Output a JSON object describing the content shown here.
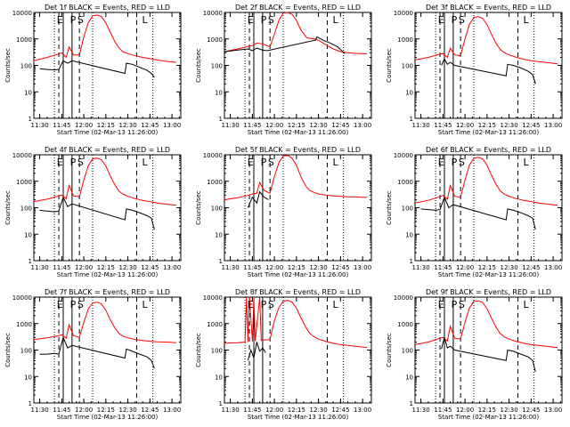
{
  "figure": {
    "y_axis_label": "Counts/sec",
    "x_axis_label": "Start Time (02-Mar-13 11:26:00)",
    "x_tick_labels": [
      "11:30",
      "11:45",
      "12:00",
      "12:15",
      "12:30",
      "12:45",
      "13:00"
    ],
    "y_tick_labels": [
      "1",
      "10",
      "100",
      "1000",
      "10000"
    ]
  },
  "colors": {
    "events": "#000000",
    "lld": "#ff0000",
    "axis": "#000000"
  },
  "chart_data": [
    {
      "type": "line",
      "title": "Det 1f BLACK = Events, RED = LLD",
      "xlabel": "Start Time (02-Mar-13 11:26:00)",
      "ylabel": "Counts/sec",
      "x_range": [
        "11:26",
        "13:06"
      ],
      "ylim": [
        1,
        10000
      ],
      "y_scale": "log",
      "region_markers": [
        "E",
        "P",
        "S",
        "L"
      ],
      "series": [
        {
          "color": "red",
          "x": [
            "11:26",
            "11:35",
            "11:42",
            "11:45",
            "11:48",
            "11:50",
            "11:53",
            "11:57",
            "12:00",
            "12:03",
            "12:06",
            "12:09",
            "12:12",
            "12:15",
            "12:18",
            "12:21",
            "12:24",
            "12:27",
            "12:30",
            "12:35",
            "12:40",
            "12:45",
            "12:50",
            "12:55",
            "13:00",
            "13:03"
          ],
          "values": [
            150,
            200,
            260,
            300,
            200,
            500,
            250,
            250,
            1200,
            4000,
            7500,
            8000,
            7000,
            4000,
            1800,
            800,
            450,
            320,
            280,
            230,
            200,
            180,
            160,
            145,
            135,
            130
          ]
        },
        {
          "color": "black",
          "x": [
            "11:30",
            "11:35",
            "11:40",
            "11:43",
            "11:46",
            "11:49",
            "11:52",
            "12:28",
            "12:29",
            "12:33",
            "12:38",
            "12:43",
            "12:46",
            "12:48"
          ],
          "values": [
            75,
            70,
            68,
            70,
            150,
            120,
            150,
            50,
            120,
            110,
            85,
            65,
            50,
            35
          ]
        }
      ]
    },
    {
      "type": "line",
      "title": "Det 2f BLACK = Events, RED = LLD",
      "xlabel": "Start Time (02-Mar-13 11:26:00)",
      "ylabel": "Counts/sec",
      "x_range": [
        "11:26",
        "13:06"
      ],
      "ylim": [
        1,
        10000
      ],
      "y_scale": "log",
      "region_markers": [
        "E",
        "P",
        "S",
        "L"
      ],
      "series": [
        {
          "color": "red",
          "x": [
            "11:26",
            "11:35",
            "11:42",
            "11:45",
            "11:48",
            "11:52",
            "11:57",
            "12:00",
            "12:03",
            "12:06",
            "12:09",
            "12:12",
            "12:15",
            "12:18",
            "12:22",
            "12:27",
            "12:30",
            "12:35",
            "12:40",
            "12:45",
            "12:50",
            "12:55",
            "13:00",
            "13:03"
          ],
          "values": [
            330,
            420,
            520,
            560,
            700,
            650,
            500,
            1500,
            5000,
            9500,
            10000,
            8500,
            5000,
            2200,
            1100,
            1000,
            900,
            600,
            420,
            330,
            300,
            285,
            280,
            275
          ]
        },
        {
          "color": "black",
          "x": [
            "11:26",
            "11:35",
            "11:42",
            "11:45",
            "11:48",
            "11:52",
            "11:55",
            "12:28",
            "12:29",
            "12:33",
            "12:38",
            "12:43",
            "12:46",
            "12:48"
          ],
          "values": [
            330,
            380,
            420,
            360,
            450,
            380,
            360,
            900,
            1200,
            900,
            700,
            500,
            350,
            280
          ]
        }
      ]
    },
    {
      "type": "line",
      "title": "Det 3f BLACK = Events, RED = LLD",
      "xlabel": "Start Time (02-Mar-13 11:26:00)",
      "ylabel": "Counts/sec",
      "x_range": [
        "11:26",
        "13:06"
      ],
      "ylim": [
        1,
        10000
      ],
      "y_scale": "log",
      "region_markers": [
        "E",
        "P",
        "S",
        "L"
      ],
      "series": [
        {
          "color": "red",
          "x": [
            "11:26",
            "11:35",
            "11:42",
            "11:45",
            "11:48",
            "11:50",
            "11:53",
            "11:57",
            "12:00",
            "12:03",
            "12:06",
            "12:09",
            "12:12",
            "12:15",
            "12:18",
            "12:21",
            "12:24",
            "12:27",
            "12:30",
            "12:35",
            "12:40",
            "12:45",
            "12:50",
            "12:55",
            "13:00",
            "13:03"
          ],
          "values": [
            160,
            200,
            260,
            280,
            200,
            450,
            250,
            230,
            1000,
            3500,
            6500,
            7000,
            6000,
            3500,
            1500,
            700,
            400,
            300,
            250,
            200,
            170,
            150,
            140,
            130,
            120,
            115
          ]
        },
        {
          "color": "black",
          "x": [
            "11:44",
            "11:46",
            "11:48",
            "11:50",
            "11:53",
            "12:28",
            "12:29",
            "12:33",
            "12:38",
            "12:43",
            "12:46",
            "12:48"
          ],
          "values": [
            100,
            180,
            110,
            130,
            100,
            40,
            110,
            100,
            80,
            60,
            45,
            20
          ]
        }
      ]
    },
    {
      "type": "line",
      "title": "Det 4f BLACK = Events, RED = LLD",
      "xlabel": "Start Time (02-Mar-13 11:26:00)",
      "ylabel": "Counts/sec",
      "x_range": [
        "11:26",
        "13:06"
      ],
      "ylim": [
        1,
        10000
      ],
      "y_scale": "log",
      "region_markers": [
        "E",
        "P",
        "S",
        "L"
      ],
      "series": [
        {
          "color": "red",
          "x": [
            "11:26",
            "11:35",
            "11:42",
            "11:45",
            "11:48",
            "11:50",
            "11:53",
            "11:57",
            "12:00",
            "12:03",
            "12:06",
            "12:09",
            "12:12",
            "12:15",
            "12:18",
            "12:21",
            "12:24",
            "12:27",
            "12:30",
            "12:35",
            "12:40",
            "12:45",
            "12:50",
            "12:55",
            "13:00",
            "13:03"
          ],
          "values": [
            170,
            210,
            270,
            300,
            220,
            700,
            280,
            260,
            1100,
            3800,
            7000,
            7500,
            6500,
            3800,
            1600,
            750,
            420,
            320,
            270,
            220,
            190,
            170,
            150,
            140,
            130,
            125
          ]
        },
        {
          "color": "black",
          "x": [
            "11:30",
            "11:35",
            "11:40",
            "11:43",
            "11:46",
            "11:49",
            "11:52",
            "12:28",
            "12:29",
            "12:33",
            "12:38",
            "12:43",
            "12:46",
            "12:48"
          ],
          "values": [
            80,
            75,
            70,
            75,
            250,
            110,
            140,
            35,
            90,
            80,
            65,
            50,
            40,
            15
          ]
        }
      ]
    },
    {
      "type": "line",
      "title": "Det 5f BLACK = Events, RED = LLD",
      "xlabel": "Start Time (02-Mar-13 11:26:00)",
      "ylabel": "Counts/sec",
      "x_range": [
        "11:26",
        "13:06"
      ],
      "ylim": [
        1,
        10000
      ],
      "y_scale": "log",
      "region_markers": [
        "E",
        "P",
        "S",
        "L"
      ],
      "series": [
        {
          "color": "red",
          "x": [
            "11:26",
            "11:35",
            "11:42",
            "11:45",
            "11:48",
            "11:50",
            "11:53",
            "11:57",
            "12:00",
            "12:03",
            "12:06",
            "12:09",
            "12:12",
            "12:15",
            "12:18",
            "12:21",
            "12:24",
            "12:27",
            "12:30",
            "12:35",
            "12:40",
            "12:45",
            "12:50",
            "12:55",
            "13:00",
            "13:03"
          ],
          "values": [
            200,
            240,
            290,
            330,
            350,
            900,
            450,
            350,
            1500,
            5000,
            9000,
            9500,
            7500,
            4000,
            1500,
            700,
            450,
            380,
            330,
            300,
            280,
            270,
            260,
            255,
            250,
            250
          ]
        },
        {
          "color": "black",
          "x": [
            "11:42",
            "11:45",
            "11:48",
            "11:50",
            "11:53",
            "11:56"
          ],
          "values": [
            100,
            250,
            150,
            400,
            250,
            200
          ]
        }
      ]
    },
    {
      "type": "line",
      "title": "Det 6f BLACK = Events, RED = LLD",
      "xlabel": "Start Time (02-Mar-13 11:26:00)",
      "ylabel": "Counts/sec",
      "x_range": [
        "11:26",
        "13:06"
      ],
      "ylim": [
        1,
        10000
      ],
      "y_scale": "log",
      "region_markers": [
        "E",
        "P",
        "S",
        "L"
      ],
      "series": [
        {
          "color": "red",
          "x": [
            "11:26",
            "11:35",
            "11:42",
            "11:45",
            "11:48",
            "11:50",
            "11:53",
            "11:57",
            "12:00",
            "12:03",
            "12:06",
            "12:09",
            "12:12",
            "12:15",
            "12:18",
            "12:21",
            "12:24",
            "12:27",
            "12:30",
            "12:35",
            "12:40",
            "12:45",
            "12:50",
            "12:55",
            "13:00",
            "13:03"
          ],
          "values": [
            150,
            190,
            250,
            290,
            210,
            700,
            270,
            250,
            1100,
            4000,
            7500,
            8000,
            7000,
            4000,
            1700,
            780,
            430,
            320,
            270,
            220,
            190,
            170,
            150,
            140,
            130,
            125
          ]
        },
        {
          "color": "black",
          "x": [
            "11:30",
            "11:35",
            "11:40",
            "11:43",
            "11:46",
            "11:49",
            "11:52",
            "12:28",
            "12:29",
            "12:33",
            "12:38",
            "12:43",
            "12:46",
            "12:48"
          ],
          "values": [
            90,
            85,
            80,
            85,
            250,
            100,
            130,
            35,
            90,
            80,
            65,
            50,
            40,
            15
          ]
        }
      ]
    },
    {
      "type": "line",
      "title": "Det 7f BLACK = Events, RED = LLD",
      "xlabel": "Start Time (02-Mar-13 11:26:00)",
      "ylabel": "Counts/sec",
      "x_range": [
        "11:26",
        "13:06"
      ],
      "ylim": [
        1,
        10000
      ],
      "y_scale": "log",
      "region_markers": [
        "E",
        "P",
        "S",
        "L"
      ],
      "series": [
        {
          "color": "red",
          "x": [
            "11:26",
            "11:35",
            "11:42",
            "11:45",
            "11:48",
            "11:50",
            "11:53",
            "11:57",
            "12:00",
            "12:03",
            "12:06",
            "12:09",
            "12:12",
            "12:15",
            "12:18",
            "12:21",
            "12:24",
            "12:27",
            "12:30",
            "12:35",
            "12:40",
            "12:45",
            "12:50",
            "12:55",
            "13:00",
            "13:03"
          ],
          "values": [
            250,
            290,
            340,
            380,
            280,
            900,
            350,
            300,
            1100,
            3500,
            6000,
            6500,
            5500,
            3200,
            1400,
            700,
            420,
            330,
            290,
            250,
            230,
            215,
            205,
            200,
            195,
            190
          ]
        },
        {
          "color": "black",
          "x": [
            "11:30",
            "11:35",
            "11:40",
            "11:43",
            "11:46",
            "11:49",
            "11:52",
            "12:28",
            "12:29",
            "12:33",
            "12:38",
            "12:43",
            "12:46",
            "12:48"
          ],
          "values": [
            70,
            70,
            75,
            70,
            300,
            120,
            150,
            50,
            110,
            90,
            70,
            55,
            40,
            20
          ]
        }
      ]
    },
    {
      "type": "line",
      "title": "Det 8f BLACK = Events, RED = LLD",
      "xlabel": "Start Time (02-Mar-13 11:26:00)",
      "ylabel": "Counts/sec",
      "x_range": [
        "11:26",
        "13:06"
      ],
      "ylim": [
        1,
        10000
      ],
      "y_scale": "log",
      "region_markers": [
        "E",
        "P",
        "S",
        "L"
      ],
      "series": [
        {
          "color": "red",
          "x": [
            "11:26",
            "11:35",
            "11:40",
            "11:41",
            "11:42",
            "11:43",
            "11:45",
            "11:46",
            "11:47",
            "11:50",
            "11:51",
            "11:53",
            "11:57",
            "12:00",
            "12:03",
            "12:06",
            "12:09",
            "12:12",
            "12:15",
            "12:18",
            "12:21",
            "12:24",
            "12:27",
            "12:30",
            "12:35",
            "12:40",
            "12:45",
            "12:50",
            "12:55",
            "13:00",
            "13:03"
          ],
          "values": [
            180,
            190,
            200,
            10000,
            200,
            10000,
            210,
            10000,
            220,
            10000,
            230,
            240,
            250,
            1300,
            4000,
            7000,
            7500,
            6500,
            3800,
            1700,
            780,
            430,
            320,
            260,
            210,
            180,
            160,
            150,
            140,
            130,
            125
          ]
        },
        {
          "color": "black",
          "x": [
            "11:42",
            "11:44",
            "11:46",
            "11:48",
            "11:50",
            "11:52",
            "11:54"
          ],
          "values": [
            40,
            100,
            50,
            200,
            90,
            120,
            80
          ]
        }
      ]
    },
    {
      "type": "line",
      "title": "Det 9f BLACK = Events, RED = LLD",
      "xlabel": "Start Time (02-Mar-13 11:26:00)",
      "ylabel": "Counts/sec",
      "x_range": [
        "11:26",
        "13:06"
      ],
      "ylim": [
        1,
        10000
      ],
      "y_scale": "log",
      "region_markers": [
        "E",
        "P",
        "S",
        "L"
      ],
      "series": [
        {
          "color": "red",
          "x": [
            "11:26",
            "11:35",
            "11:42",
            "11:45",
            "11:48",
            "11:50",
            "11:53",
            "11:57",
            "12:00",
            "12:03",
            "12:06",
            "12:09",
            "12:12",
            "12:15",
            "12:18",
            "12:21",
            "12:24",
            "12:27",
            "12:30",
            "12:35",
            "12:40",
            "12:45",
            "12:50",
            "12:55",
            "13:00",
            "13:03"
          ],
          "values": [
            160,
            200,
            270,
            300,
            220,
            800,
            280,
            260,
            1100,
            3800,
            7000,
            7200,
            6300,
            3600,
            1600,
            750,
            420,
            310,
            260,
            210,
            180,
            160,
            150,
            140,
            130,
            125
          ]
        },
        {
          "color": "black",
          "x": [
            "11:44",
            "11:46",
            "11:48",
            "11:50",
            "11:53",
            "12:28",
            "12:29",
            "12:33",
            "12:38",
            "12:43",
            "12:46",
            "12:48"
          ],
          "values": [
            110,
            300,
            120,
            140,
            100,
            40,
            100,
            90,
            70,
            55,
            40,
            15
          ]
        }
      ]
    }
  ]
}
